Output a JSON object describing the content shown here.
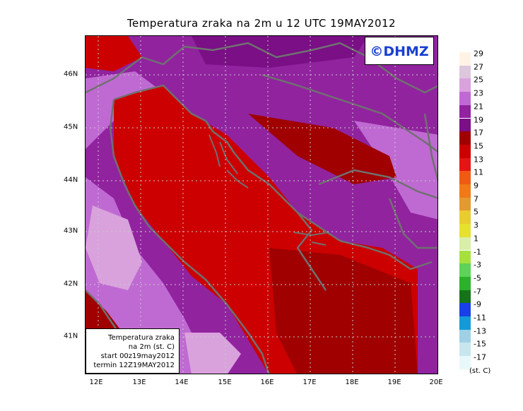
{
  "title": "Temperatura zraka na 2m u 12 UTC 19MAY2012",
  "logo": "©DHMZ",
  "info": {
    "line1": "Temperatura zraka",
    "line2": "na 2m (st. C)",
    "line3": "start 00z19may2012",
    "line4": "termin 12Z19MAY2012"
  },
  "axes": {
    "lon_labels": [
      "12E",
      "13E",
      "14E",
      "15E",
      "16E",
      "17E",
      "18E",
      "19E",
      "20E"
    ],
    "lat_labels": [
      "46N",
      "45N",
      "44N",
      "43N",
      "42N",
      "41N"
    ]
  },
  "legend": {
    "labels": [
      "29",
      "27",
      "25",
      "23",
      "21",
      "19",
      "17",
      "15",
      "13",
      "11",
      "9",
      "7",
      "5",
      "3",
      "1",
      "-1",
      "-3",
      "-5",
      "-7",
      "-9",
      "-11",
      "-13",
      "-15",
      "-17"
    ],
    "colors": [
      "#fff3e6",
      "#ddc7dd",
      "#d9a2dd",
      "#bf6ad2",
      "#91239f",
      "#7a0f86",
      "#a00000",
      "#cc0000",
      "#e41515",
      "#ef5a15",
      "#f07a18",
      "#e39a30",
      "#e8cc30",
      "#e6e030",
      "#d8eeaa",
      "#a6e03c",
      "#5ed25a",
      "#2bb12b",
      "#17731a",
      "#1a3fe6",
      "#149ad9",
      "#9fd0e6",
      "#c7e6ee",
      "#e9f8fa"
    ],
    "unit": "(st. C)"
  },
  "colors": {
    "sea_main": "#cc0000",
    "sea_deep": "#a00000",
    "land_purple": "#91239f",
    "land_light": "#bf6ad2",
    "land_pale": "#d9a2dd",
    "coast": "#707070",
    "logo_text": "#1a3fd0"
  }
}
